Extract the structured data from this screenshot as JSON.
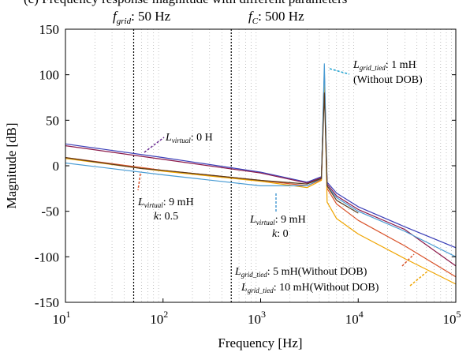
{
  "chart_data": {
    "type": "line",
    "title_line": "(c) Frequency response magnitude with different parameters",
    "header": {
      "fgrid_sym": "f",
      "fgrid_sub": "grid",
      "fgrid_val": ": 50 Hz",
      "fc_sym": "f",
      "fc_sub": "C",
      "fc_val": ": 500 Hz"
    },
    "xlabel": "Frequency [Hz]",
    "ylabel": "Magnitude [dB]",
    "xscale": "log",
    "xlim": [
      10,
      100000
    ],
    "ylim": [
      -150,
      150
    ],
    "grid": "vertical-minor-dotted",
    "x_ticks": [
      {
        "base": "10",
        "exp": "1"
      },
      {
        "base": "10",
        "exp": "2"
      },
      {
        "base": "10",
        "exp": "3"
      },
      {
        "base": "10",
        "exp": "4"
      },
      {
        "base": "10",
        "exp": "5"
      }
    ],
    "y_ticks": [
      "150",
      "100",
      "50",
      "0",
      "-50",
      "-100",
      "-150"
    ],
    "y_tick_values": [
      150,
      100,
      50,
      0,
      -50,
      -100,
      -150
    ],
    "vlines": [
      50,
      500
    ],
    "series": [
      {
        "color": "#3b3fb8",
        "x": [
          10,
          100,
          1000,
          3000,
          4200,
          4500,
          4800,
          6000,
          10000,
          30000,
          100000
        ],
        "y": [
          24,
          9,
          -7,
          -18,
          -12,
          100,
          -18,
          -30,
          -45,
          -67,
          -90
        ]
      },
      {
        "color": "#8b1a4a",
        "x": [
          10,
          100,
          1000,
          3000,
          4200,
          4500,
          4800,
          6000,
          10000,
          30000,
          100000
        ],
        "y": [
          22,
          7,
          -8,
          -19,
          -13,
          95,
          -20,
          -33,
          -48,
          -70,
          -110
        ]
      },
      {
        "color": "#d9532b",
        "x": [
          10,
          100,
          1000,
          3000,
          4200,
          4500,
          4800,
          6000,
          10000,
          30000,
          100000
        ],
        "y": [
          9,
          -5,
          -16,
          -22,
          -15,
          105,
          -25,
          -42,
          -60,
          -88,
          -122
        ]
      },
      {
        "color": "#f0a500",
        "x": [
          10,
          100,
          1000,
          3000,
          4200,
          4500,
          4800,
          6000,
          10000,
          30000,
          100000
        ],
        "y": [
          8,
          -6,
          -17,
          -24,
          -16,
          100,
          -40,
          -58,
          -75,
          -102,
          -130
        ]
      },
      {
        "color": "#4a9cd4",
        "x": [
          10,
          100,
          1000,
          3000,
          4200,
          4500,
          4800,
          6000,
          10000,
          30000,
          100000
        ],
        "y": [
          3,
          -10,
          -22,
          -22,
          -14,
          112,
          -22,
          -35,
          -50,
          -72,
          -100
        ]
      },
      {
        "color": "#5a3a1a",
        "x": [
          10,
          60,
          100,
          1000,
          3000,
          4200,
          4500,
          4800,
          6000,
          10000
        ],
        "y": [
          9,
          -3,
          -5,
          -16,
          -20,
          -14,
          80,
          -22,
          -38,
          -52
        ]
      }
    ],
    "annotations": [
      {
        "name": "L",
        "sub": "virtual",
        "text": ": 0 H",
        "color": "#6a2c91"
      },
      {
        "name": "L",
        "sub": "virtual",
        "text": ": 9 mH",
        "line2_name": "k",
        "line2_text": ": 0.5",
        "color": "#d9532b"
      },
      {
        "name": "L",
        "sub": "virtual",
        "text": ": 9 mH",
        "line2_name": "k",
        "line2_text": ": 0",
        "color": "#4a9cd4"
      },
      {
        "name": "L",
        "sub": "grid_tied",
        "text": ": 1 mH",
        "line2_text": "(Without DOB)",
        "color": "#1aa0d0"
      },
      {
        "name": "L",
        "sub": "grid_tied",
        "text": ": 5 mH(Without DOB)",
        "color": "#d9532b"
      },
      {
        "name": "L",
        "sub": "grid_tied",
        "text": ": 10 mH(Without DOB)",
        "color": "#f0a500"
      }
    ]
  }
}
